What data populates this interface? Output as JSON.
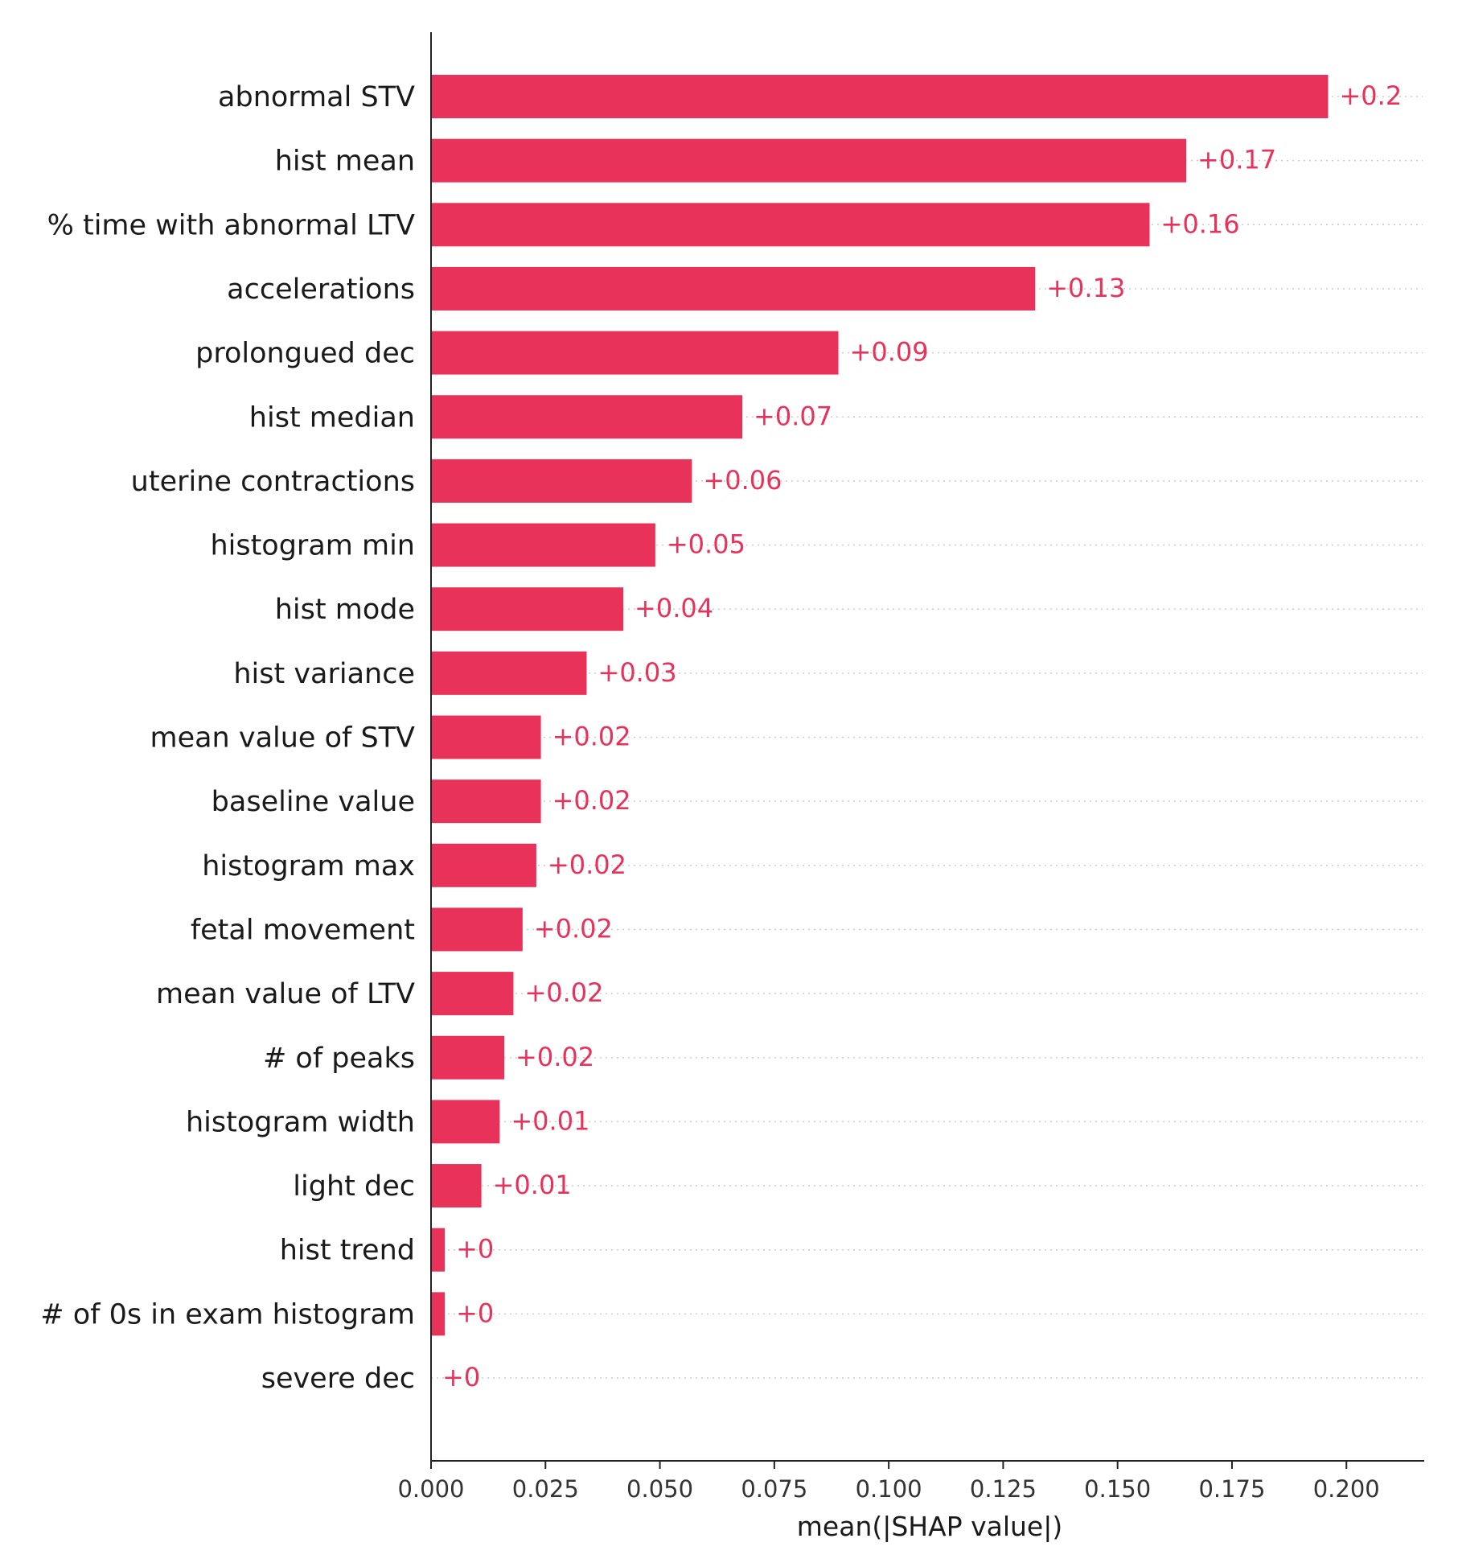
{
  "chart_data": {
    "type": "bar",
    "orientation": "horizontal",
    "categories": [
      "abnormal STV",
      "hist mean",
      "% time with abnormal LTV",
      "accelerations",
      "prolongued dec",
      "hist median",
      "uterine contractions",
      "histogram min",
      "hist mode",
      "hist variance",
      "mean value of STV",
      "baseline value",
      "histogram max",
      "fetal movement",
      "mean value of LTV",
      "# of peaks",
      "histogram width",
      "light dec",
      "hist trend",
      "# of 0s in exam histogram",
      "severe dec"
    ],
    "values": [
      0.196,
      0.165,
      0.157,
      0.132,
      0.089,
      0.068,
      0.057,
      0.049,
      0.042,
      0.034,
      0.024,
      0.024,
      0.023,
      0.02,
      0.018,
      0.016,
      0.015,
      0.011,
      0.003,
      0.003,
      0.0
    ],
    "value_labels": [
      "+0.2",
      "+0.17",
      "+0.16",
      "+0.13",
      "+0.09",
      "+0.07",
      "+0.06",
      "+0.05",
      "+0.04",
      "+0.03",
      "+0.02",
      "+0.02",
      "+0.02",
      "+0.02",
      "+0.02",
      "+0.02",
      "+0.01",
      "+0.01",
      "+0",
      "+0",
      "+0"
    ],
    "xlabel": "mean(|SHAP value|)",
    "xlim": [
      0.0,
      0.217
    ],
    "xticks": [
      0.0,
      0.025,
      0.05,
      0.075,
      0.1,
      0.125,
      0.15,
      0.175,
      0.2
    ],
    "xtick_labels": [
      "0.000",
      "0.025",
      "0.050",
      "0.075",
      "0.100",
      "0.125",
      "0.150",
      "0.175",
      "0.200"
    ],
    "grid": "horizontal dotted",
    "bar_color": "#e8325a",
    "label_color": "#e8325a"
  }
}
